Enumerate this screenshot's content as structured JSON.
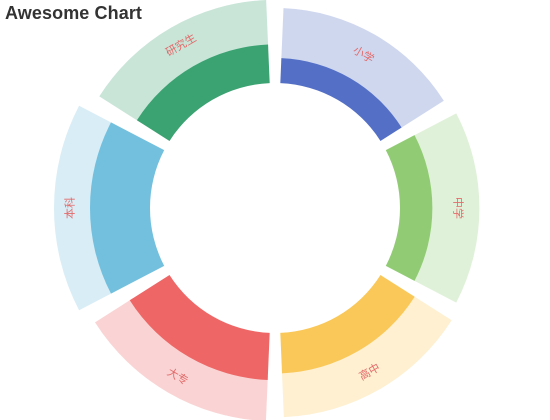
{
  "chart_data": {
    "type": "pie",
    "variant": "rose-donut",
    "title": "Awesome Chart",
    "categories": [
      "小学",
      "中学",
      "高中",
      "大专",
      "本科",
      "研究生"
    ],
    "values": [
      42,
      62,
      84,
      102,
      137,
      79
    ],
    "max_value": 137,
    "colors": [
      "#5470c6",
      "#91cc75",
      "#fac858",
      "#ee6666",
      "#73c0de",
      "#3ba272"
    ],
    "label_color": "#e36b6b",
    "label_position": "outer band",
    "legend": "none"
  }
}
